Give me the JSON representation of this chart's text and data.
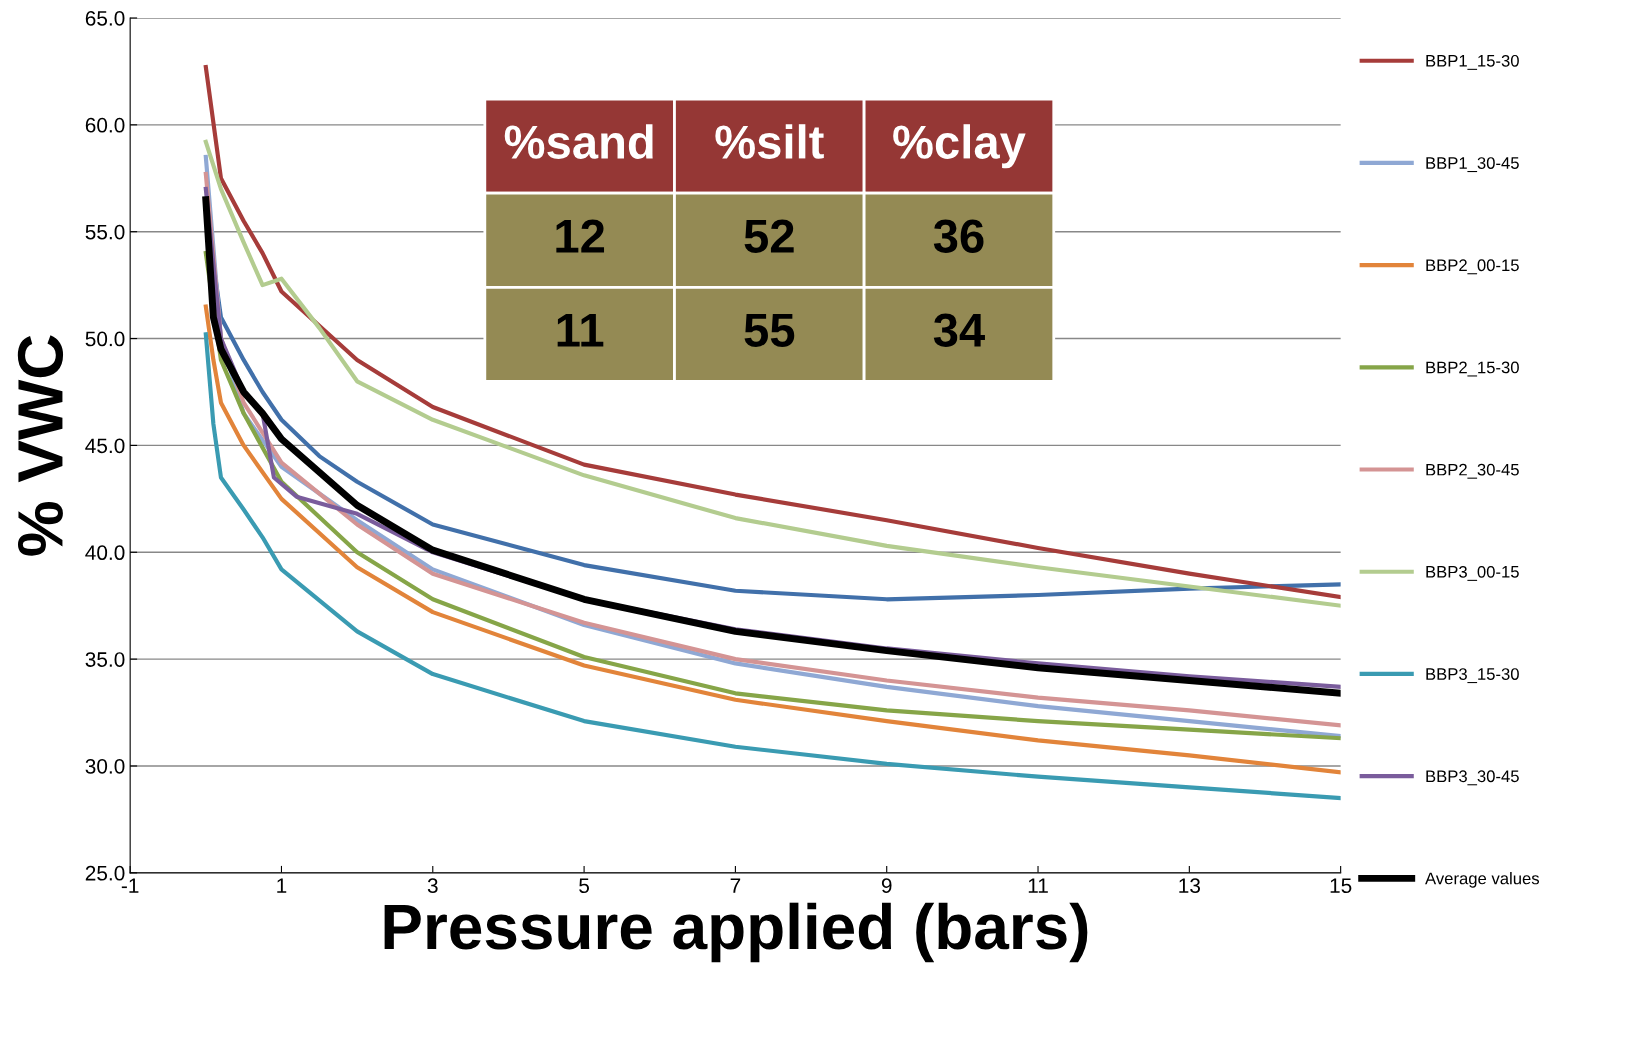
{
  "chart_data": {
    "type": "line",
    "xlabel": "Pressure applied (bars)",
    "ylabel": "% VWC",
    "xlim": [
      -1,
      15
    ],
    "xticks": [
      -1,
      1,
      3,
      5,
      7,
      9,
      11,
      13,
      15
    ],
    "ylim": [
      25,
      65
    ],
    "yticks": [
      {
        "value": 25,
        "label": "25.0"
      },
      {
        "value": 30,
        "label": "30.0"
      },
      {
        "value": 35,
        "label": "35.0"
      },
      {
        "value": 40,
        "label": "40.0"
      },
      {
        "value": 45,
        "label": "45.0"
      },
      {
        "value": 50,
        "label": "50.0"
      },
      {
        "value": 55,
        "label": "55.0"
      },
      {
        "value": 60,
        "label": "60.0"
      },
      {
        "value": 65,
        "label": "65.0"
      }
    ],
    "grid": "y",
    "legend": "right",
    "marker": "none",
    "line_style": "solid",
    "annotations": [
      "%sand",
      "%silt",
      "%clay",
      "12",
      "52",
      "36",
      "11",
      "55",
      "34"
    ],
    "series": [
      {
        "color": "#4170aa",
        "x": [
          0,
          0.2,
          0.5,
          0.75,
          1,
          1.5,
          2,
          3,
          5,
          7,
          9,
          11,
          13,
          15
        ],
        "values": [
          56,
          51,
          49,
          47.5,
          46.2,
          44.5,
          43.3,
          41.3,
          39.4,
          38.2,
          37.8,
          38.0,
          38.3,
          38.5
        ]
      },
      {
        "name": "BBP1_15-30",
        "color": "#a63c3a",
        "x": [
          0,
          0.2,
          0.5,
          0.75,
          1,
          2,
          3,
          5,
          7,
          9,
          11,
          13,
          15
        ],
        "values": [
          62.7,
          57.5,
          55.5,
          54,
          52.2,
          49,
          46.8,
          44.1,
          42.7,
          41.5,
          40.2,
          39.0,
          37.9
        ]
      },
      {
        "name": "BBP1_30-45",
        "color": "#8fa8d4",
        "x": [
          0,
          0.2,
          0.5,
          1,
          2,
          3,
          5,
          7,
          9,
          11,
          13,
          15
        ],
        "values": [
          58.5,
          50,
          46.5,
          44,
          41.5,
          39.2,
          36.6,
          34.8,
          33.7,
          32.8,
          32.1,
          31.4
        ]
      },
      {
        "name": "BBP2_00-15",
        "color": "#e2843a",
        "x": [
          0,
          0.1,
          0.2,
          0.5,
          1,
          2,
          3,
          5,
          7,
          9,
          11,
          13,
          15
        ],
        "values": [
          51.5,
          49,
          47,
          45,
          42.5,
          39.3,
          37.2,
          34.7,
          33.1,
          32.1,
          31.2,
          30.5,
          29.7
        ]
      },
      {
        "name": "BBP2_15-30",
        "color": "#86a548",
        "x": [
          0,
          0.2,
          0.5,
          1,
          2,
          3,
          5,
          7,
          9,
          11,
          13,
          15
        ],
        "values": [
          54,
          49,
          46.5,
          43.3,
          40,
          37.8,
          35.1,
          33.4,
          32.6,
          32.1,
          31.7,
          31.3
        ]
      },
      {
        "name": "BBP2_30-45",
        "color": "#d49494",
        "x": [
          0,
          0.2,
          0.5,
          1,
          2,
          3,
          5,
          7,
          9,
          11,
          13,
          15
        ],
        "values": [
          57.7,
          50,
          47,
          44.2,
          41.3,
          39,
          36.7,
          35,
          34,
          33.2,
          32.6,
          31.9
        ]
      },
      {
        "name": "BBP3_00-15",
        "color": "#b3cc8f",
        "x": [
          0,
          0.2,
          0.5,
          0.75,
          1,
          1.5,
          2,
          3,
          5,
          7,
          9,
          11,
          13,
          15
        ],
        "values": [
          59.2,
          57,
          54.5,
          52.5,
          52.8,
          50.5,
          48,
          46.2,
          43.6,
          41.6,
          40.3,
          39.3,
          38.4,
          37.5
        ]
      },
      {
        "name": "BBP3_15-30",
        "color": "#3a9bb2",
        "x": [
          0,
          0.1,
          0.2,
          0.5,
          0.75,
          1,
          2,
          3,
          5,
          7,
          9,
          11,
          13,
          15
        ],
        "values": [
          50.2,
          46,
          43.5,
          42,
          40.7,
          39.2,
          36.3,
          34.3,
          32.1,
          30.9,
          30.1,
          29.5,
          29.0,
          28.5
        ]
      },
      {
        "name": "BBP3_30-45",
        "color": "#7a5c9c",
        "x": [
          0,
          0.2,
          0.5,
          0.75,
          0.9,
          1.2,
          2,
          3,
          5,
          7,
          9,
          11,
          13,
          15
        ],
        "values": [
          57,
          50,
          47.5,
          46.5,
          43.5,
          42.6,
          41.8,
          40,
          37.8,
          36.4,
          35.5,
          34.8,
          34.2,
          33.7
        ]
      },
      {
        "name": "Average values",
        "color": "#000000",
        "x": [
          0,
          0.1,
          0.2,
          0.5,
          0.75,
          1,
          2,
          3,
          5,
          7,
          9,
          11,
          13,
          15
        ],
        "values": [
          56.5,
          51,
          49.5,
          47.5,
          46.5,
          45.3,
          42.2,
          40.1,
          37.8,
          36.3,
          35.4,
          34.6,
          34.0,
          33.4
        ]
      }
    ]
  }
}
